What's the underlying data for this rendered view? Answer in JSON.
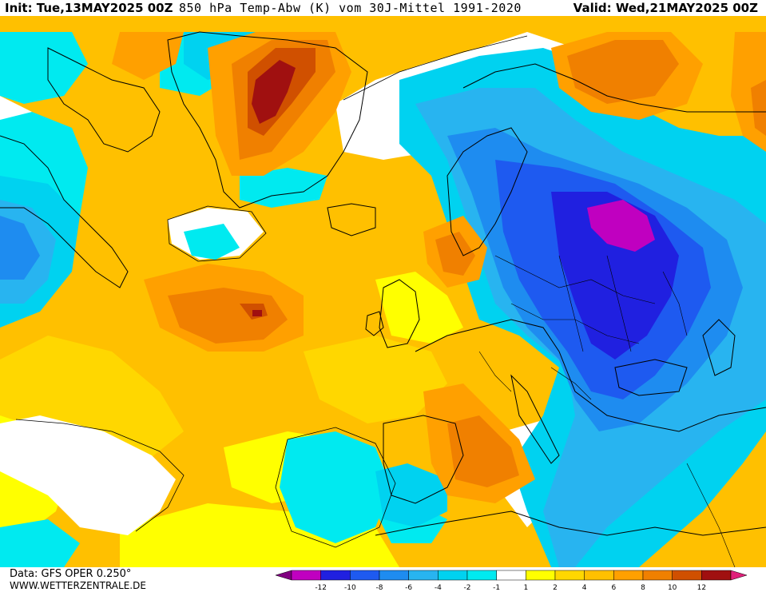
{
  "header": {
    "init": "Init: Tue,13MAY2025 00Z",
    "title": "850 hPa Temp-Abw (K) vom 30J-Mittel 1991-2020",
    "valid": "Valid: Wed,21MAY2025 00Z"
  },
  "footer": {
    "data_source": "Data: GFS OPER 0.250°",
    "website": "WWW.WETTERZENTRALE.DE"
  },
  "legend": {
    "colors": [
      "#800080",
      "#c000c0",
      "#2020e0",
      "#1e5af0",
      "#1e8cf0",
      "#28b4f0",
      "#00d2f0",
      "#00eaf0",
      "#ffffff",
      "#ffff00",
      "#ffd700",
      "#ffc000",
      "#ffa000",
      "#f08000",
      "#d05000",
      "#a01010",
      "#e0207a"
    ],
    "ticks": [
      "-12",
      "-10",
      "-8",
      "-6",
      "-4",
      "-2",
      "-1",
      "1",
      "2",
      "4",
      "6",
      "8",
      "10",
      "12"
    ]
  },
  "map": {
    "variable": "850 hPa temperature anomaly",
    "unit": "K",
    "region": "North Atlantic / Europe"
  }
}
